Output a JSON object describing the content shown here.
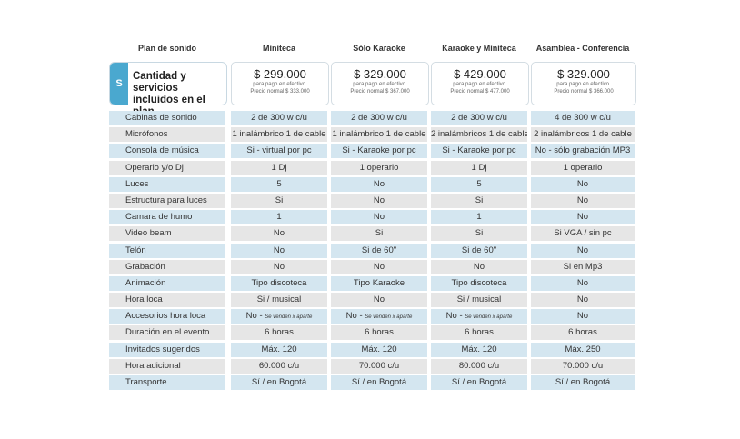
{
  "header": {
    "plan_label": "Plan de sonido",
    "plans": [
      "Miniteca",
      "Sólo Karaoke",
      "Karaoke y Miniteca",
      "Asamblea - Conferencia"
    ]
  },
  "services_box": {
    "badge": "S",
    "title": "Cantidad y servicios incluidos en el plan"
  },
  "prices": [
    {
      "amount": "$ 299.000",
      "note1": "para pago en efectivo.",
      "note2": "Precio normal $ 333.000"
    },
    {
      "amount": "$ 329.000",
      "note1": "para pago en efectivo.",
      "note2": "Precio normal $ 367.000"
    },
    {
      "amount": "$ 429.000",
      "note1": "para pago en efectivo.",
      "note2": "Precio normal $ 477.000"
    },
    {
      "amount": "$ 329.000",
      "note1": "para pago en efectivo.",
      "note2": "Precio normal $ 366.000"
    }
  ],
  "rows": [
    {
      "label": "Cabinas de sonido",
      "values": [
        "2 de 300 w c/u",
        "2 de 300 w c/u",
        "2 de 300 w c/u",
        "4 de 300 w c/u"
      ]
    },
    {
      "label": "Micrófonos",
      "values": [
        "1 inalámbrico 1 de cable",
        "1 inalámbrico 1 de cable",
        "2 inalámbricos 1 de cable",
        "2 inalámbricos 1 de cable"
      ]
    },
    {
      "label": "Consola de música",
      "values": [
        "Si - virtual por pc",
        "Si - Karaoke por pc",
        "Si - Karaoke por pc",
        "No - sólo grabación MP3"
      ]
    },
    {
      "label": "Operario y/o Dj",
      "values": [
        "1 Dj",
        "1 operario",
        "1 Dj",
        "1 operario"
      ]
    },
    {
      "label": "Luces",
      "values": [
        "5",
        "No",
        "5",
        "No"
      ]
    },
    {
      "label": "Estructura para luces",
      "values": [
        "Si",
        "No",
        "Si",
        "No"
      ]
    },
    {
      "label": "Camara de humo",
      "values": [
        "1",
        "No",
        "1",
        "No"
      ]
    },
    {
      "label": "Video beam",
      "values": [
        "No",
        "Si",
        "Si",
        "Si VGA / sin pc"
      ]
    },
    {
      "label": "Telón",
      "values": [
        "No",
        "Si de 60\"",
        "Si de 60\"",
        "No"
      ]
    },
    {
      "label": "Grabación",
      "values": [
        "No",
        "No",
        "No",
        "Si en Mp3"
      ]
    },
    {
      "label": "Animación",
      "values": [
        "Tipo discoteca",
        "Tipo Karaoke",
        "Tipo discoteca",
        "No"
      ]
    },
    {
      "label": "Hora loca",
      "values": [
        "Si / musical",
        "No",
        "Si / musical",
        "No"
      ]
    },
    {
      "label": "Accesorios hora loca",
      "values": [
        "No -",
        "No -",
        "No -",
        "No"
      ],
      "small": [
        "Se venden x aparte",
        "Se venden x aparte",
        "Se venden x aparte",
        ""
      ]
    },
    {
      "label": "Duración en el evento",
      "values": [
        "6 horas",
        "6 horas",
        "6 horas",
        "6 horas"
      ]
    },
    {
      "label": "Invitados sugeridos",
      "values": [
        "Máx. 120",
        "Máx. 120",
        "Máx. 120",
        "Máx. 250"
      ]
    },
    {
      "label": "Hora adicional",
      "values": [
        "60.000 c/u",
        "70.000 c/u",
        "80.000 c/u",
        "70.000 c/u"
      ]
    },
    {
      "label": "Transporte",
      "values": [
        "Sí / en Bogotá",
        "Sí / en Bogotá",
        "Sí / en Bogotá",
        "Sí / en Bogotá"
      ]
    }
  ]
}
